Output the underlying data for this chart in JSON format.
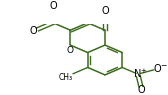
{
  "bg_color": "#ffffff",
  "bond_color": "#3a6b1a",
  "figsize": [
    1.68,
    0.95
  ],
  "dpi": 100,
  "xlim": [
    0,
    168
  ],
  "ylim": [
    0,
    95
  ]
}
